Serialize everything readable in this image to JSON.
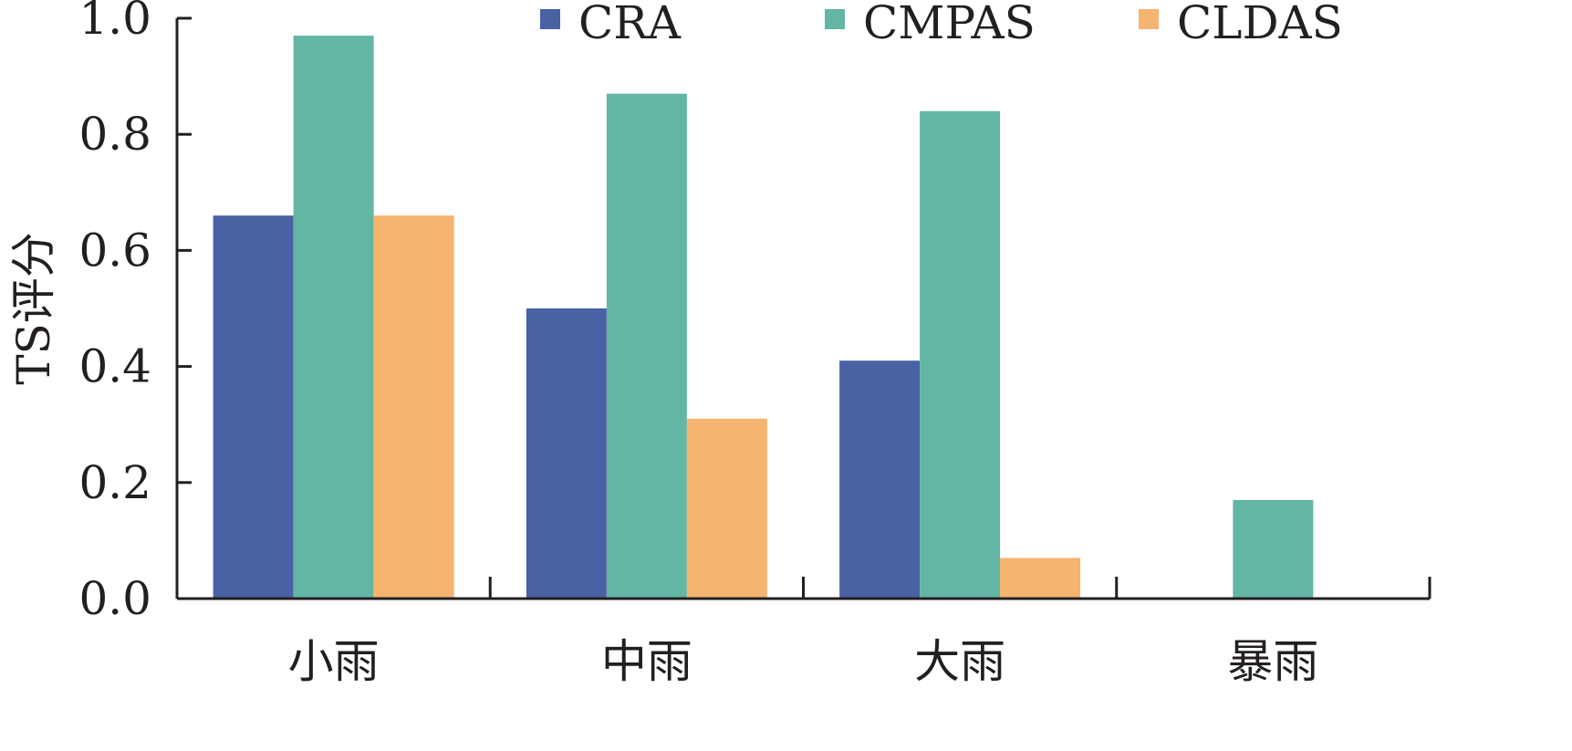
{
  "chart_data": {
    "type": "bar",
    "title": "",
    "xlabel": "",
    "ylabel": "TS评分",
    "categories": [
      "小雨",
      "中雨",
      "大雨",
      "暴雨"
    ],
    "series": [
      {
        "name": "CRA",
        "color": "#4862a3",
        "values": [
          0.66,
          0.5,
          0.41,
          0.0
        ]
      },
      {
        "name": "CMPAS",
        "color": "#63b5a4",
        "values": [
          0.97,
          0.87,
          0.84,
          0.17
        ]
      },
      {
        "name": "CLDAS",
        "color": "#f5b46f",
        "values": [
          0.66,
          0.31,
          0.07,
          0.0
        ]
      }
    ],
    "ylim": [
      0.0,
      1.0
    ],
    "yticks": [
      "0.0",
      "0.2",
      "0.4",
      "0.6",
      "0.8",
      "1.0"
    ],
    "legend_position": "top",
    "grid": false
  }
}
